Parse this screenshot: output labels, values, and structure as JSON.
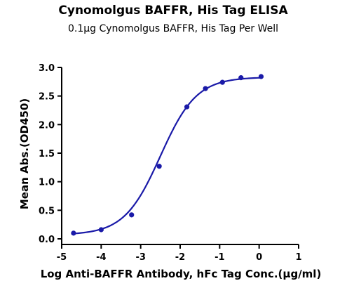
{
  "chart_data": {
    "type": "scatter",
    "title": "Cynomolgus BAFFR, His Tag ELISA",
    "subtitle": "0.1μg Cynomolgus BAFFR, His Tag Per Well",
    "xlabel": "Log  Anti-BAFFR Antibody, hFc Tag Conc.(μg/ml)",
    "ylabel": "Mean Abs.(OD450)",
    "xlim": [
      -5,
      1
    ],
    "ylim": [
      0,
      3.0
    ],
    "xticks": [
      "-5",
      "-4",
      "-3",
      "-2",
      "-1",
      "0",
      "1"
    ],
    "yticks": [
      "0.0",
      "0.5",
      "1.0",
      "1.5",
      "2.0",
      "2.5",
      "3.0"
    ],
    "grid": false,
    "series": [
      {
        "color": "#1a1aa8",
        "x": [
          -4.7,
          -4.0,
          -3.23,
          -2.53,
          -1.83,
          -1.36,
          -0.93,
          -0.46,
          0.05
        ],
        "y": [
          0.1,
          0.16,
          0.42,
          1.27,
          2.31,
          2.63,
          2.74,
          2.82,
          2.84
        ],
        "fit": {
          "bottom": 0.07,
          "top": 2.83,
          "logEC50": -2.5,
          "hill": 0.95
        }
      }
    ]
  }
}
